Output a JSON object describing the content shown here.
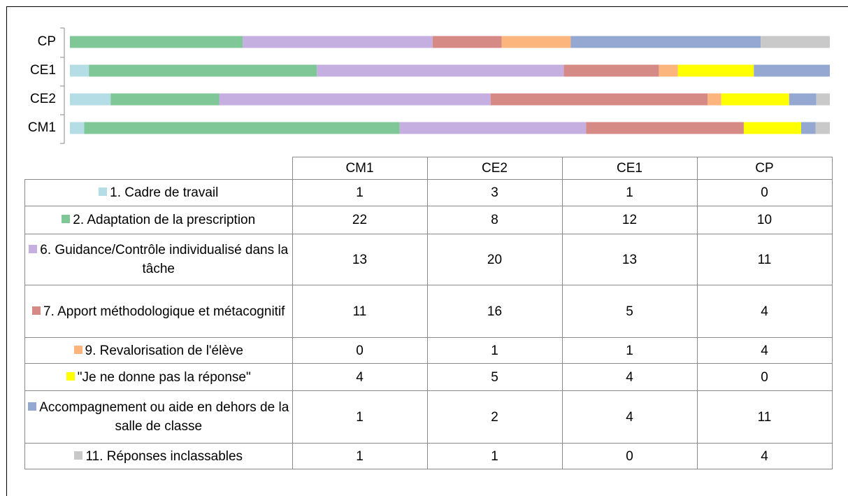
{
  "chart_data": {
    "type": "bar",
    "orientation": "horizontal",
    "stacked": "percent",
    "categories": [
      "CM1",
      "CE2",
      "CE1",
      "CP"
    ],
    "series": [
      {
        "name": "1. Cadre de travail",
        "color": "#b4dde6",
        "values": [
          1,
          3,
          1,
          0
        ]
      },
      {
        "name": "2. Adaptation de la prescription",
        "color": "#7fc796",
        "values": [
          22,
          8,
          12,
          10
        ]
      },
      {
        "name": "6. Guidance/Contrôle individualisé dans la tâche",
        "color": "#c5aee0",
        "values": [
          13,
          20,
          13,
          11
        ]
      },
      {
        "name": "7. Apport méthodologique et métacognitif",
        "color": "#d68a85",
        "values": [
          11,
          16,
          5,
          4
        ]
      },
      {
        "name": "9. Revalorisation de l'élève",
        "color": "#fbb57d",
        "values": [
          0,
          1,
          1,
          4
        ]
      },
      {
        "name": "\"Je ne donne pas la réponse\"",
        "color": "#ffff00",
        "values": [
          4,
          5,
          4,
          0
        ]
      },
      {
        "name": "Accompagnement ou aide en dehors de la salle de classe",
        "color": "#95a8d2",
        "values": [
          1,
          2,
          4,
          11
        ]
      },
      {
        "name": "11. Réponses inclassables",
        "color": "#c9c9c9",
        "values": [
          1,
          1,
          0,
          4
        ]
      }
    ],
    "data_table": true
  }
}
